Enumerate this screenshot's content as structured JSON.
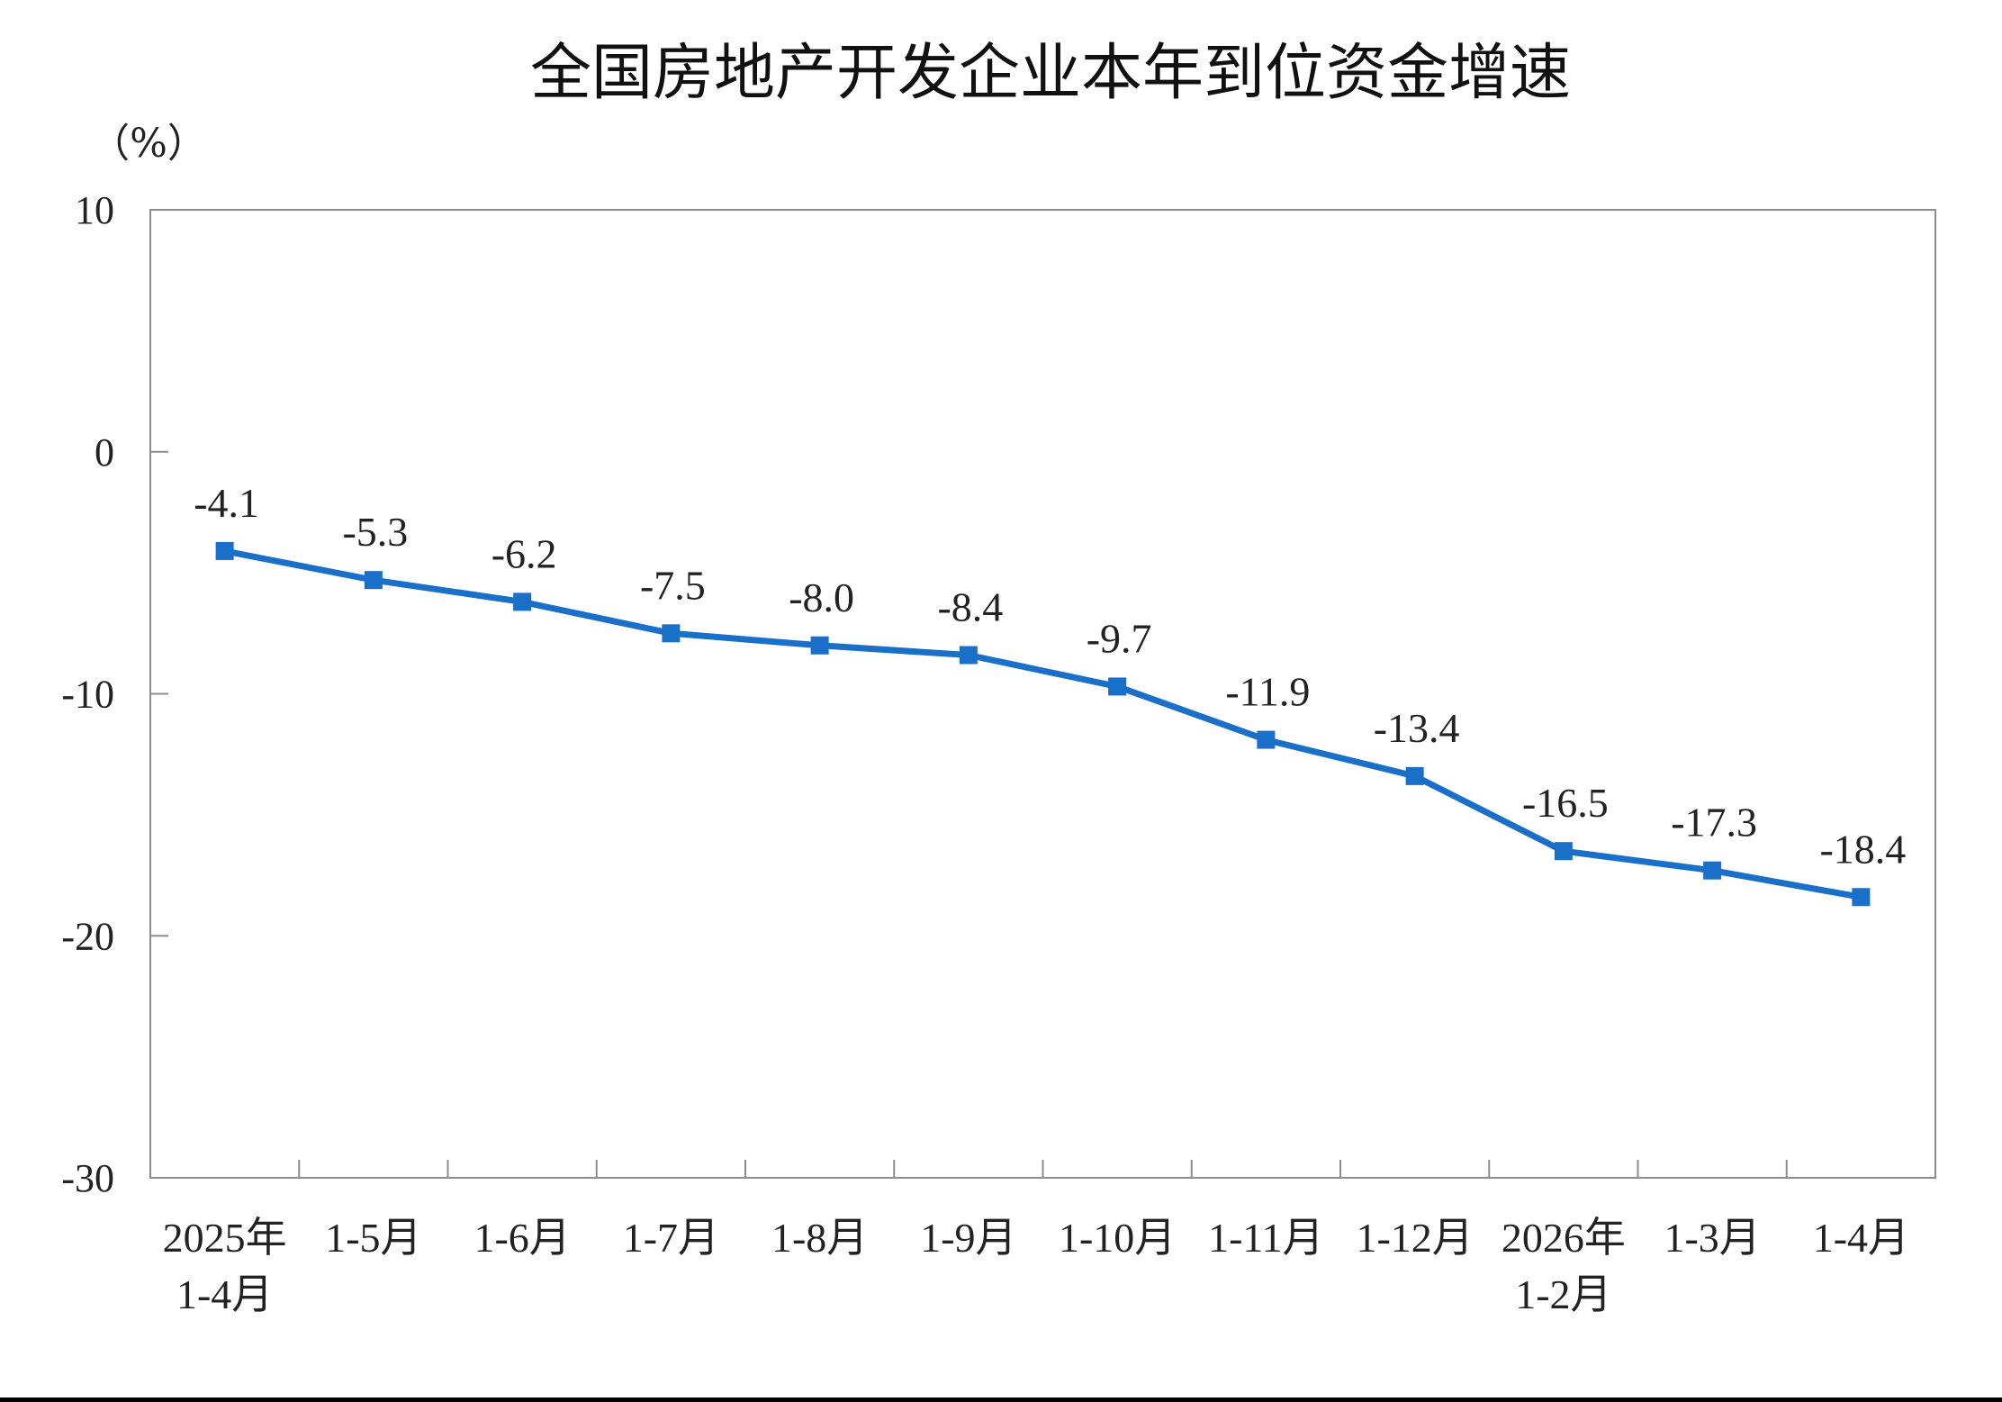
{
  "chart_data": {
    "type": "line",
    "title": "全国房地产开发企业本年到位资金增速",
    "ylabel": "（%）",
    "xlabel": "",
    "ylim": [
      -30,
      10
    ],
    "yticks": [
      10,
      0,
      -10,
      -20,
      -30
    ],
    "ytick_labels": [
      "10",
      "0",
      "-10",
      "-20",
      "-30"
    ],
    "categories": [
      [
        "2025年",
        "1-4月"
      ],
      [
        "1-5月"
      ],
      [
        "1-6月"
      ],
      [
        "1-7月"
      ],
      [
        "1-8月"
      ],
      [
        "1-9月"
      ],
      [
        "1-10月"
      ],
      [
        "1-11月"
      ],
      [
        "1-12月"
      ],
      [
        "2026年",
        "1-2月"
      ],
      [
        "1-3月"
      ],
      [
        "1-4月"
      ]
    ],
    "series": [
      {
        "values": [
          -4.1,
          -5.3,
          -6.2,
          -7.5,
          -8.0,
          -8.4,
          -9.7,
          -11.9,
          -13.4,
          -16.5,
          -17.3,
          -18.4
        ]
      }
    ],
    "data_labels": [
      "-4.1",
      "-5.3",
      "-6.2",
      "-7.5",
      "-8.0",
      "-8.4",
      "-9.7",
      "-11.9",
      "-13.4",
      "-16.5",
      "-17.3",
      "-18.4"
    ],
    "grid": false,
    "legend": "none",
    "colors": {
      "line": "#1A6FC8",
      "marker": "#1A6FC8",
      "frame": "#8C8C8C",
      "background": "#FFFFFF",
      "outer": "#000000"
    }
  }
}
